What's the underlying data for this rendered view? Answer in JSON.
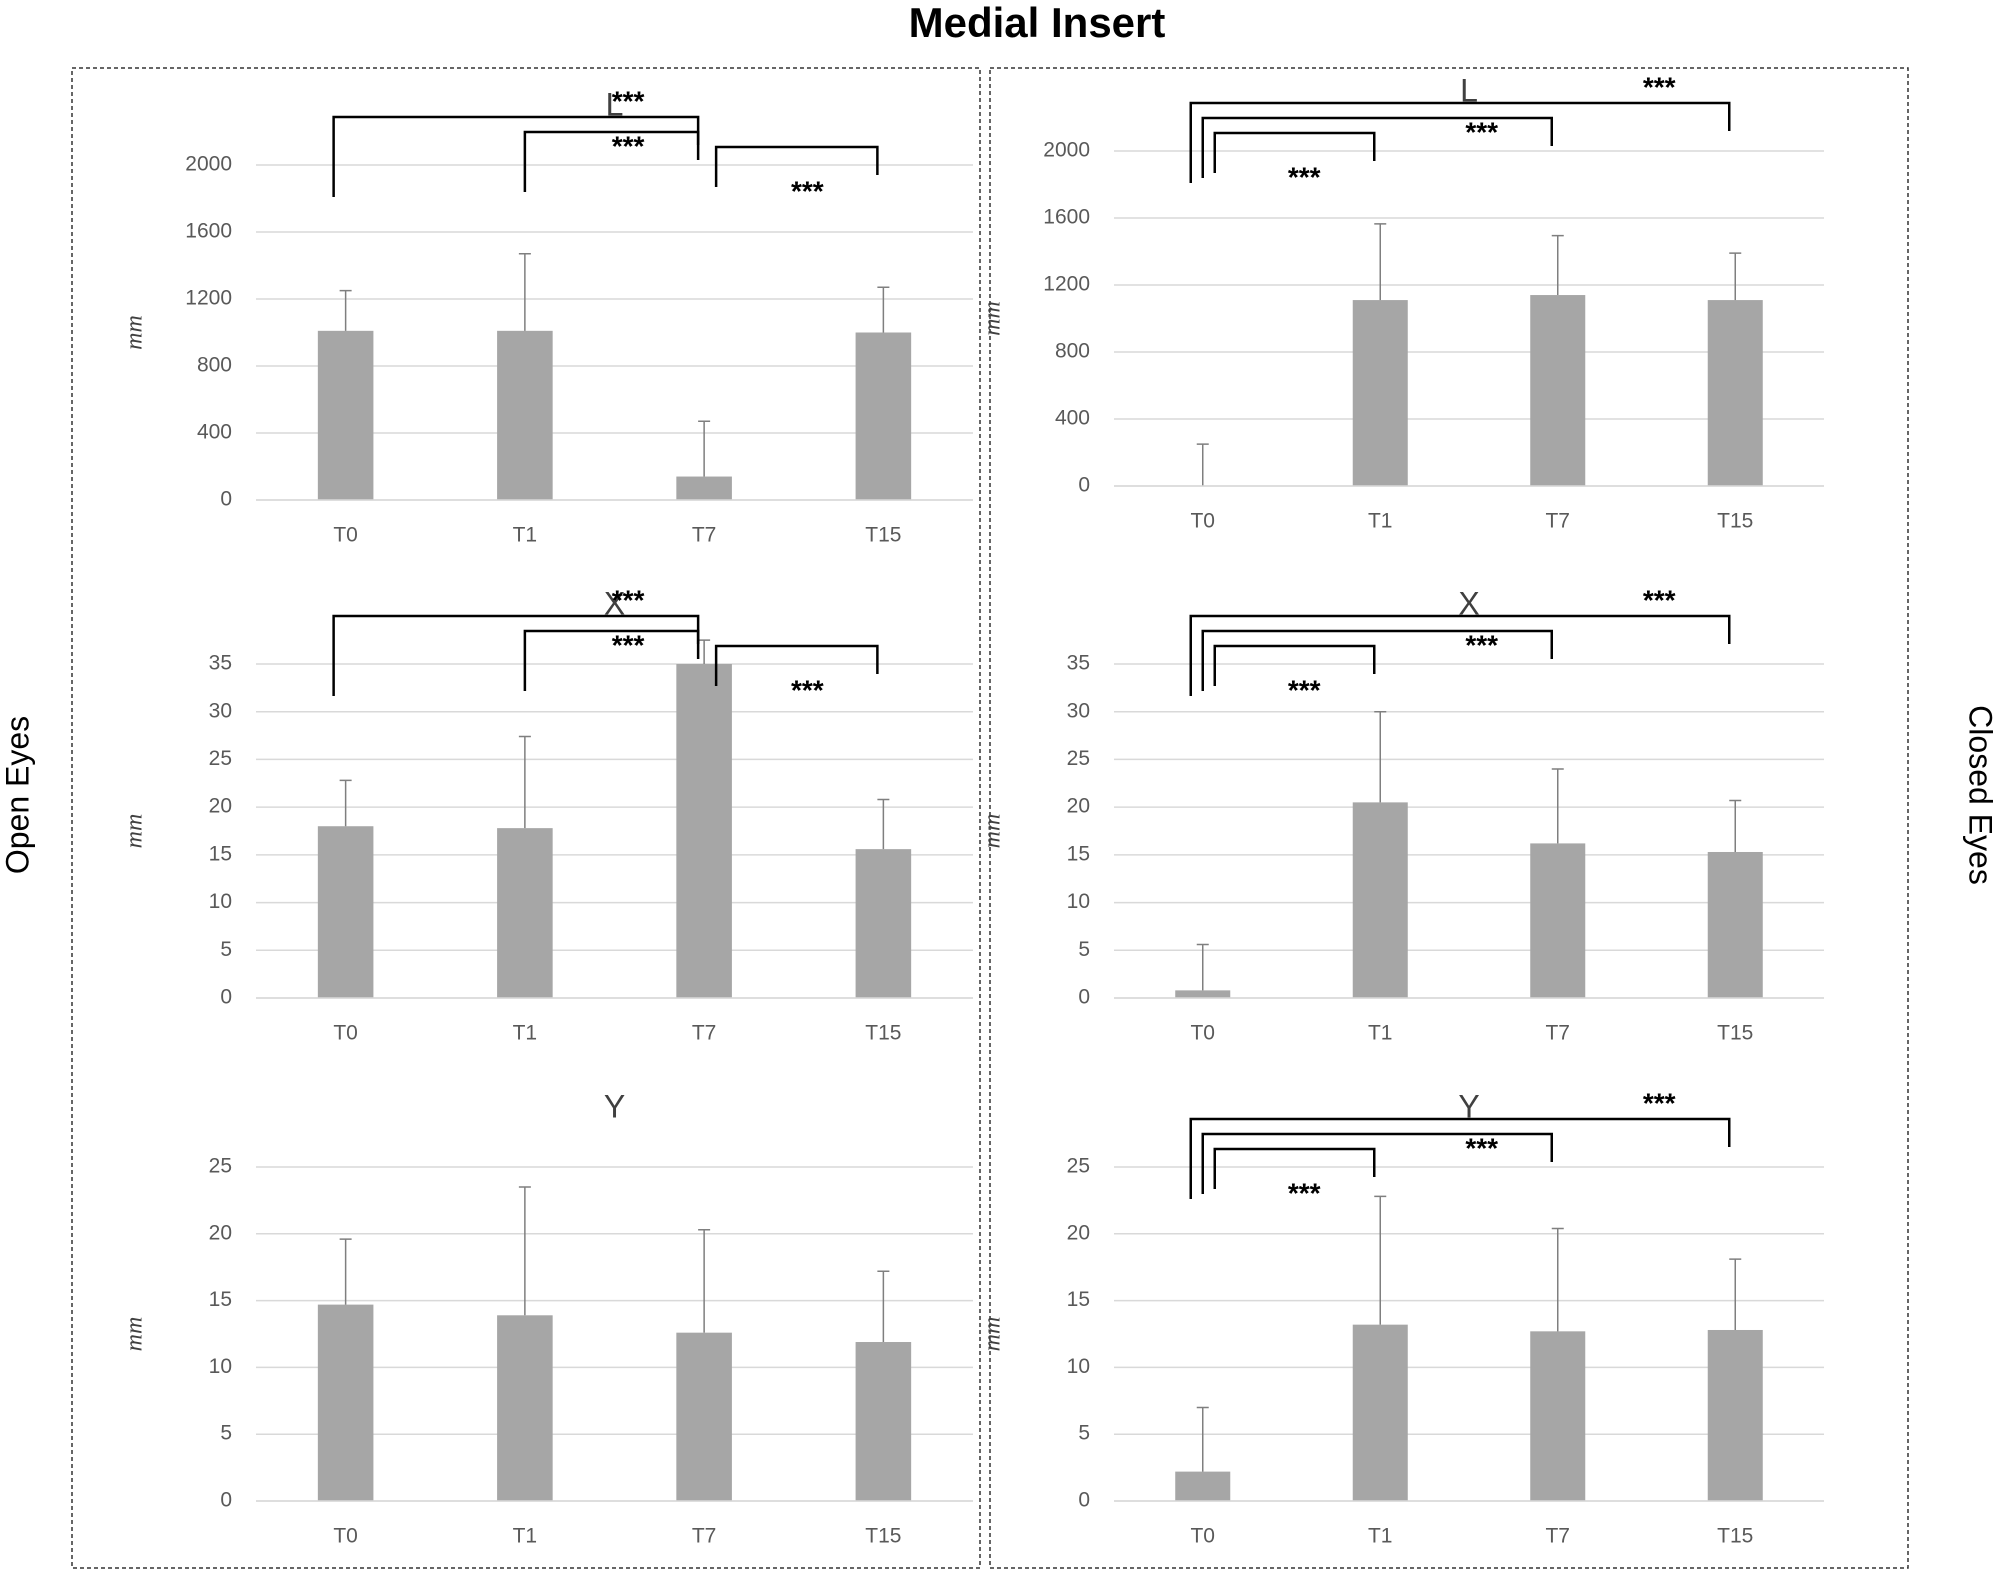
{
  "title": "Medial Insert",
  "row_labels": [
    "Open Eyes",
    "Closed Eyes"
  ],
  "chart_data": [
    {
      "type": "bar",
      "title": "L",
      "y_label": "mm",
      "categories": [
        "T0",
        "T1",
        "T7",
        "T15"
      ],
      "values": [
        1010,
        1010,
        140,
        1000
      ],
      "errors": [
        240,
        460,
        330,
        270
      ],
      "ylim": [
        0,
        2000
      ],
      "yticks": [
        0,
        400,
        800,
        1200,
        1600,
        2000
      ],
      "grid": true,
      "color": "#a6a6a6",
      "error_color": "#7f7f7f",
      "annotations": [
        {
          "text": "***",
          "between": [
            "T0",
            "T7"
          ]
        },
        {
          "text": "***",
          "between": [
            "T1",
            "T7"
          ]
        },
        {
          "text": "***",
          "between": [
            "T7",
            "T15"
          ]
        }
      ]
    },
    {
      "type": "bar",
      "title": "X",
      "y_label": "mm",
      "categories": [
        "T0",
        "T1",
        "T7",
        "T15"
      ],
      "values": [
        18,
        17.8,
        35,
        15.6
      ],
      "errors": [
        4.8,
        9.6,
        2.5,
        5.2
      ],
      "ylim": [
        0,
        35
      ],
      "yticks": [
        0,
        5,
        10,
        15,
        20,
        25,
        30,
        35
      ],
      "grid": true,
      "color": "#a6a6a6",
      "error_color": "#7f7f7f",
      "annotations": [
        {
          "text": "***",
          "between": [
            "T0",
            "T7"
          ]
        },
        {
          "text": "***",
          "between": [
            "T1",
            "T7"
          ]
        },
        {
          "text": "***",
          "between": [
            "T7",
            "T15"
          ]
        }
      ]
    },
    {
      "type": "bar",
      "title": "Y",
      "y_label": "mm",
      "categories": [
        "T0",
        "T1",
        "T7",
        "T15"
      ],
      "values": [
        14.7,
        13.9,
        12.6,
        11.9
      ],
      "errors": [
        4.9,
        9.6,
        7.7,
        5.3
      ],
      "ylim": [
        0,
        25
      ],
      "yticks": [
        0,
        5,
        10,
        15,
        20,
        25
      ],
      "grid": true,
      "color": "#a6a6a6",
      "error_color": "#7f7f7f",
      "annotations": []
    },
    {
      "type": "bar",
      "title": "L",
      "y_label": "mm",
      "categories": [
        "T0",
        "T1",
        "T7",
        "T15"
      ],
      "values": [
        0,
        1110,
        1140,
        1110
      ],
      "errors": [
        250,
        455,
        355,
        280
      ],
      "ylim": [
        0,
        2000
      ],
      "yticks": [
        0,
        400,
        800,
        1200,
        1600,
        2000
      ],
      "grid": true,
      "color": "#a6a6a6",
      "error_color": "#7f7f7f",
      "annotations": [
        {
          "text": "***",
          "between": [
            "T0",
            "T15"
          ]
        },
        {
          "text": "***",
          "between": [
            "T0",
            "T7"
          ]
        },
        {
          "text": "***",
          "between": [
            "T0",
            "T1"
          ]
        }
      ]
    },
    {
      "type": "bar",
      "title": "X",
      "y_label": "mm",
      "categories": [
        "T0",
        "T1",
        "T7",
        "T15"
      ],
      "values": [
        0.8,
        20.5,
        16.2,
        15.3
      ],
      "errors": [
        4.8,
        9.5,
        7.8,
        5.4
      ],
      "ylim": [
        0,
        35
      ],
      "yticks": [
        0,
        5,
        10,
        15,
        20,
        25,
        30,
        35
      ],
      "grid": true,
      "color": "#a6a6a6",
      "error_color": "#7f7f7f",
      "annotations": [
        {
          "text": "***",
          "between": [
            "T0",
            "T15"
          ]
        },
        {
          "text": "***",
          "between": [
            "T0",
            "T7"
          ]
        },
        {
          "text": "***",
          "between": [
            "T0",
            "T1"
          ]
        }
      ]
    },
    {
      "type": "bar",
      "title": "Y",
      "y_label": "mm",
      "categories": [
        "T0",
        "T1",
        "T7",
        "T15"
      ],
      "values": [
        2.2,
        13.2,
        12.7,
        12.8
      ],
      "errors": [
        4.8,
        9.6,
        7.7,
        5.3
      ],
      "ylim": [
        0,
        25
      ],
      "yticks": [
        0,
        5,
        10,
        15,
        20,
        25
      ],
      "grid": true,
      "color": "#a6a6a6",
      "error_color": "#7f7f7f",
      "annotations": [
        {
          "text": "***",
          "between": [
            "T0",
            "T15"
          ]
        },
        {
          "text": "***",
          "between": [
            "T0",
            "T7"
          ]
        },
        {
          "text": "***",
          "between": [
            "T0",
            "T1"
          ]
        }
      ]
    }
  ]
}
